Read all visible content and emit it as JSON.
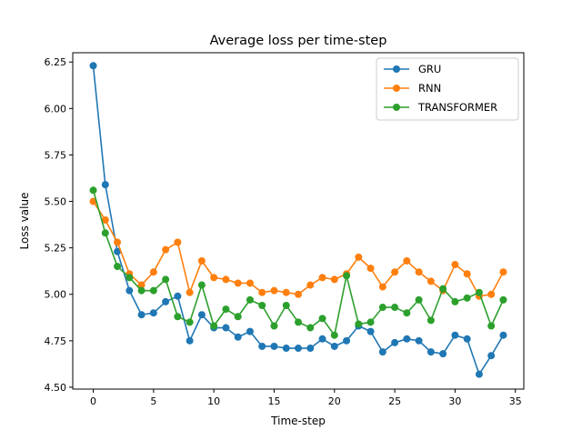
{
  "chart_data": {
    "type": "line",
    "title": "Average loss per time-step",
    "xlabel": "Time-step",
    "ylabel": "Loss value",
    "xlim": [
      -1.7,
      35.7
    ],
    "ylim": [
      4.49,
      6.3
    ],
    "xticks": [
      0,
      5,
      10,
      15,
      20,
      25,
      30,
      35
    ],
    "xtick_labels": [
      "0",
      "5",
      "10",
      "15",
      "20",
      "25",
      "30",
      "35"
    ],
    "yticks": [
      4.5,
      4.75,
      5.0,
      5.25,
      5.5,
      5.75,
      6.0,
      6.25
    ],
    "ytick_labels": [
      "4.50",
      "4.75",
      "5.00",
      "5.25",
      "5.50",
      "5.75",
      "6.00",
      "6.25"
    ],
    "grid": false,
    "legend_position": "top-right",
    "x": [
      0,
      1,
      2,
      3,
      4,
      5,
      6,
      7,
      8,
      9,
      10,
      11,
      12,
      13,
      14,
      15,
      16,
      17,
      18,
      19,
      20,
      21,
      22,
      23,
      24,
      25,
      26,
      27,
      28,
      29,
      30,
      31,
      32,
      33,
      34
    ],
    "series": [
      {
        "name": "GRU",
        "color": "#1f77b4",
        "values": [
          6.23,
          5.59,
          5.23,
          5.02,
          4.89,
          4.9,
          4.96,
          4.99,
          4.75,
          4.89,
          4.82,
          4.82,
          4.77,
          4.8,
          4.72,
          4.72,
          4.71,
          4.71,
          4.71,
          4.76,
          4.72,
          4.75,
          4.83,
          4.8,
          4.69,
          4.74,
          4.76,
          4.75,
          4.69,
          4.68,
          4.78,
          4.76,
          4.57,
          4.67,
          4.78
        ]
      },
      {
        "name": "RNN",
        "color": "#ff7f0e",
        "values": [
          5.5,
          5.4,
          5.28,
          5.11,
          5.05,
          5.12,
          5.24,
          5.28,
          5.01,
          5.18,
          5.09,
          5.08,
          5.06,
          5.06,
          5.01,
          5.02,
          5.01,
          5.0,
          5.05,
          5.09,
          5.08,
          5.11,
          5.2,
          5.14,
          5.04,
          5.12,
          5.18,
          5.12,
          5.07,
          5.02,
          5.16,
          5.11,
          4.99,
          5.0,
          5.12
        ]
      },
      {
        "name": "TRANSFORMER",
        "color": "#2ca02c",
        "values": [
          5.56,
          5.33,
          5.15,
          5.09,
          5.02,
          5.02,
          5.08,
          4.88,
          4.85,
          5.05,
          4.83,
          4.92,
          4.88,
          4.97,
          4.94,
          4.83,
          4.94,
          4.85,
          4.82,
          4.87,
          4.78,
          5.1,
          4.84,
          4.85,
          4.93,
          4.93,
          4.9,
          4.97,
          4.86,
          5.03,
          4.96,
          4.98,
          5.01,
          4.83,
          4.97
        ]
      }
    ]
  }
}
